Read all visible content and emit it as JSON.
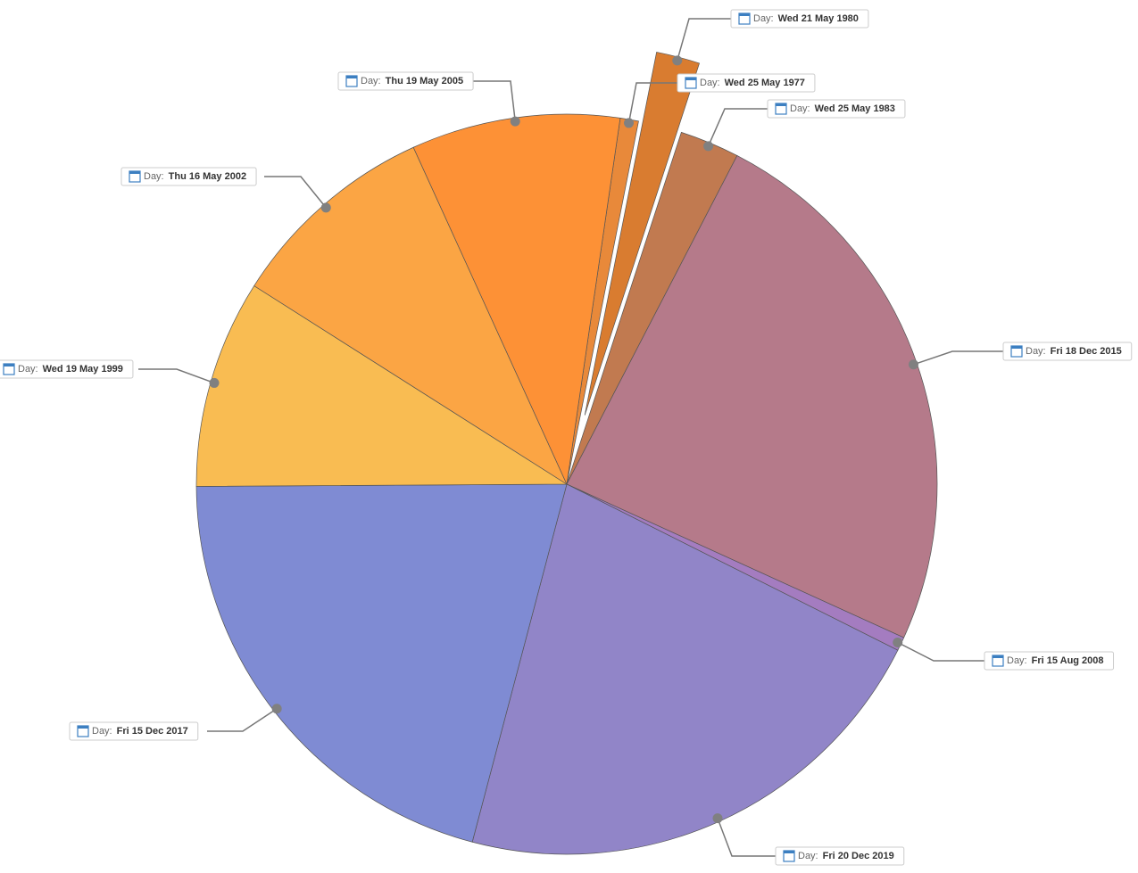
{
  "chart_data": {
    "type": "pie",
    "label_prefix": "Day:",
    "categories": [
      "Wed 25 May 1977",
      "Wed 21 May 1980",
      "Wed 25 May 1983",
      "Fri 18 Dec 2015",
      "Fri 15 Aug 2008",
      "Fri 20 Dec 2019",
      "Fri 15 Dec 2017",
      "Wed 19 May 1999",
      "Thu 16 May 2002",
      "Thu 19 May 2005"
    ],
    "values": [
      0.8,
      1.9,
      2.6,
      24.2,
      0.6,
      21.7,
      20.8,
      9.1,
      9.2,
      9.1
    ],
    "colors": [
      "#e8893a",
      "#d97c30",
      "#c17a50",
      "#b57a8a",
      "#a47cc0",
      "#9185c8",
      "#7f8bd3",
      "#f9bc52",
      "#fba544",
      "#fd9136"
    ]
  }
}
